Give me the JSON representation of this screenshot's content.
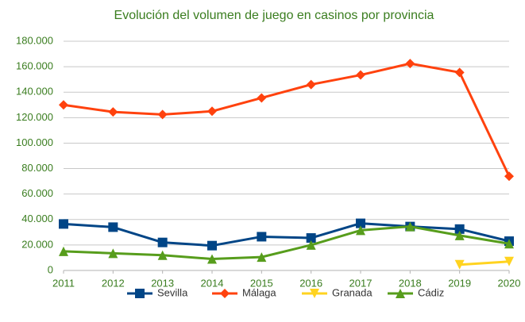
{
  "chart_data": {
    "type": "line",
    "title": "Evolución del volumen de juego en casinos por provincia",
    "x": [
      2011,
      2012,
      2013,
      2014,
      2015,
      2016,
      2017,
      2018,
      2019,
      2020
    ],
    "xlim": [
      2011,
      2020
    ],
    "xticks": [
      2011,
      2012,
      2013,
      2014,
      2015,
      2016,
      2017,
      2018,
      2019,
      2020
    ],
    "ylim": [
      0,
      180000
    ],
    "yticks": [
      0,
      {
        "value": 20000,
        "label": "20.000"
      },
      {
        "value": 40000,
        "label": "40.000"
      },
      {
        "value": 60000,
        "label": "60.000"
      },
      {
        "value": 80000,
        "label": "80.000"
      },
      {
        "value": 100000,
        "label": "100.000"
      },
      {
        "value": 120000,
        "label": "120.000"
      },
      {
        "value": 140000,
        "label": "140.000"
      },
      {
        "value": 160000,
        "label": "160.000"
      },
      {
        "value": 180000,
        "label": "180.000"
      }
    ],
    "grid": true,
    "legend": "bottom",
    "series": [
      {
        "name": "Sevilla",
        "color": "#004586",
        "marker": "square",
        "values": [
          36500,
          34000,
          22000,
          19500,
          26500,
          25500,
          37000,
          34500,
          32500,
          23000
        ]
      },
      {
        "name": "Málaga",
        "color": "#ff420e",
        "marker": "diamond",
        "values": [
          130000,
          124500,
          122500,
          125000,
          135500,
          146000,
          153500,
          162500,
          155500,
          74000
        ]
      },
      {
        "name": "Granada",
        "color": "#ffd320",
        "marker": "triangle-down",
        "values": [
          null,
          null,
          null,
          null,
          null,
          null,
          null,
          null,
          4500,
          7000
        ]
      },
      {
        "name": "Cádiz",
        "color": "#579d1c",
        "marker": "triangle",
        "values": [
          15000,
          13500,
          12000,
          9000,
          10500,
          20000,
          31500,
          34500,
          27500,
          21000
        ]
      }
    ]
  }
}
